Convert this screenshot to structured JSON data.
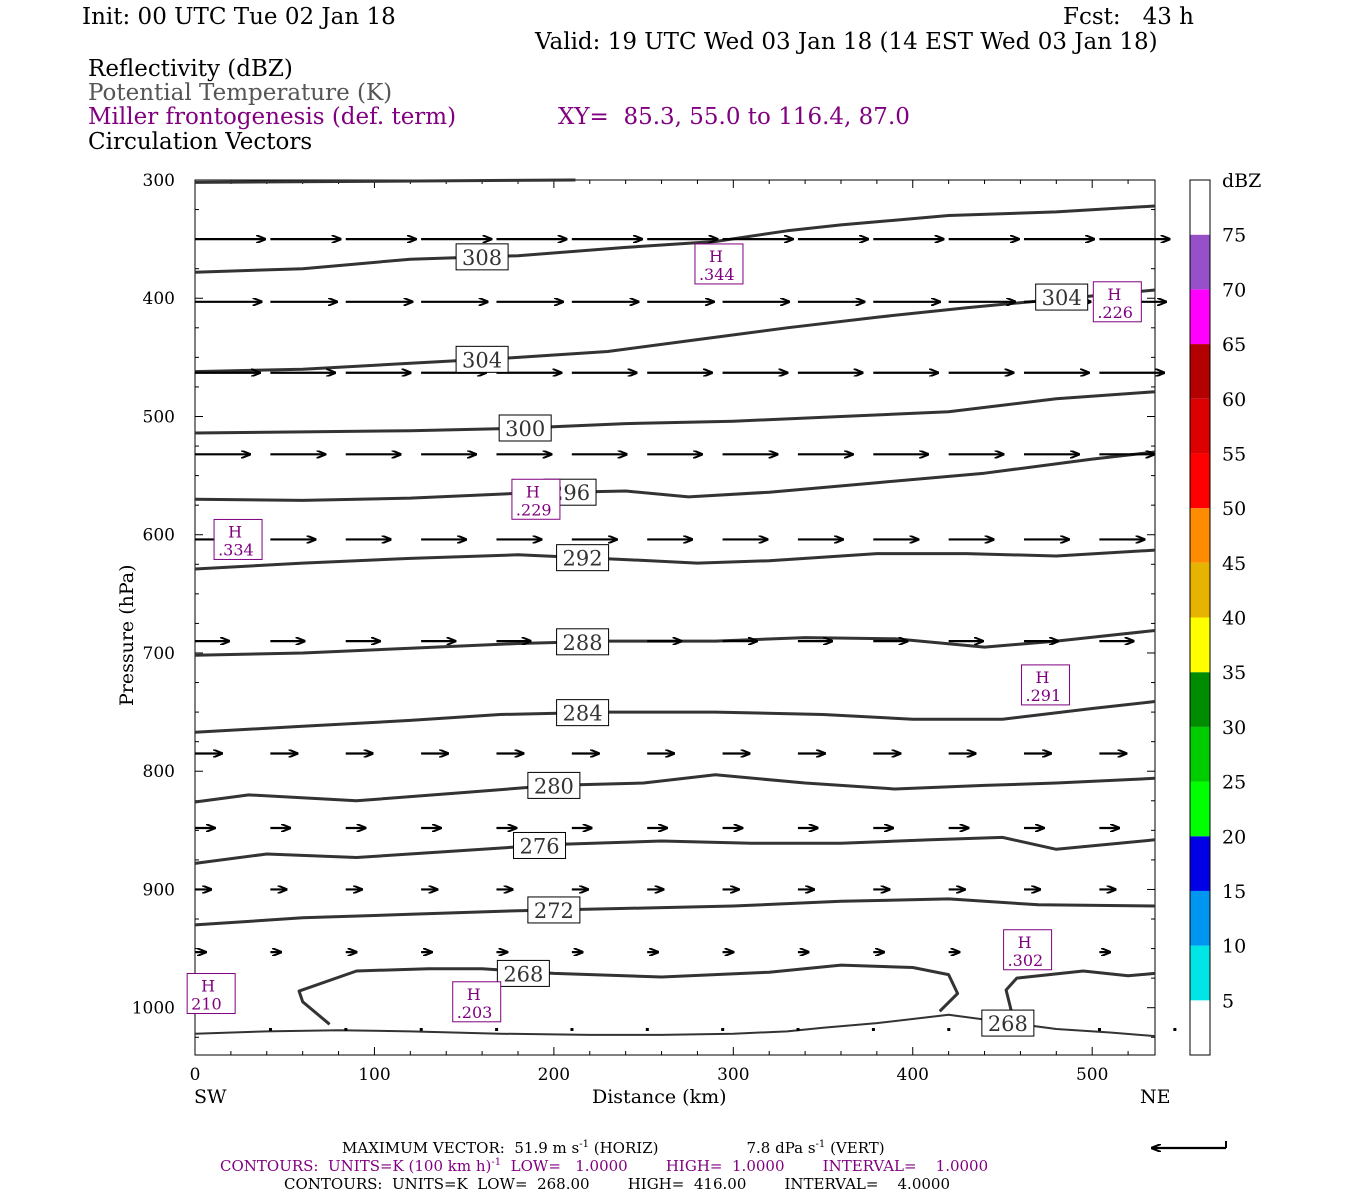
{
  "header": {
    "init": "Init: 00 UTC Tue 02 Jan 18",
    "fcst": "Fcst:   43 h",
    "valid": "Valid: 19 UTC Wed 03 Jan 18 (14 EST Wed 03 Jan 18)"
  },
  "legend_lines": {
    "reflectivity": "Reflectivity (dBZ)",
    "theta": "Potential Temperature (K)",
    "frontogenesis": "Miller frontogenesis (def. term)",
    "xy": "XY=  85.3, 55.0 to 116.4, 87.0",
    "vectors": "Circulation Vectors"
  },
  "colors": {
    "theta_contour": "#333333",
    "frontogenesis": "#800080",
    "vector": "#000000"
  },
  "chart_data": {
    "type": "cross-section",
    "xlabel": "Distance (km)",
    "ylabel": "Pressure (hPa)",
    "xlim": [
      0,
      535
    ],
    "ylim": [
      1040,
      300
    ],
    "y_log_scale": false,
    "x_ticks": [
      "0",
      "100",
      "200",
      "300",
      "400",
      "500"
    ],
    "y_ticks": [
      "300",
      "400",
      "500",
      "600",
      "700",
      "800",
      "900",
      "1000"
    ],
    "x_end_labels": {
      "left": "SW",
      "right": "NE"
    },
    "theta_contours": [
      {
        "level": 308,
        "label": "308",
        "label_x": 160,
        "points": [
          [
            0,
            378
          ],
          [
            60,
            375
          ],
          [
            120,
            367
          ],
          [
            180,
            364
          ],
          [
            240,
            357
          ],
          [
            290,
            352
          ],
          [
            330,
            343
          ],
          [
            360,
            338
          ],
          [
            420,
            330
          ],
          [
            480,
            327
          ],
          [
            535,
            322
          ]
        ]
      },
      {
        "level": 304,
        "label": "304",
        "label_x": 160,
        "points": [
          [
            0,
            462
          ],
          [
            60,
            460
          ],
          [
            120,
            455
          ],
          [
            180,
            450
          ],
          [
            230,
            445
          ],
          [
            280,
            435
          ],
          [
            330,
            425
          ],
          [
            380,
            416
          ],
          [
            430,
            408
          ],
          [
            480,
            401
          ],
          [
            535,
            393
          ]
        ]
      },
      {
        "level": 304,
        "label": "304",
        "label_x": 483,
        "points": []
      },
      {
        "level": 300,
        "label": "300",
        "label_x": 184,
        "points": [
          [
            0,
            514
          ],
          [
            60,
            513
          ],
          [
            120,
            512
          ],
          [
            180,
            510
          ],
          [
            240,
            506
          ],
          [
            300,
            504
          ],
          [
            360,
            500
          ],
          [
            420,
            496
          ],
          [
            480,
            485
          ],
          [
            535,
            479
          ]
        ]
      },
      {
        "level": 296,
        "label": "296",
        "label_x": 209,
        "points": [
          [
            0,
            570
          ],
          [
            60,
            571
          ],
          [
            120,
            569
          ],
          [
            180,
            565
          ],
          [
            240,
            563
          ],
          [
            275,
            568
          ],
          [
            320,
            564
          ],
          [
            380,
            556
          ],
          [
            440,
            548
          ],
          [
            500,
            536
          ],
          [
            535,
            530
          ]
        ]
      },
      {
        "level": 292,
        "label": "292",
        "label_x": 216,
        "points": [
          [
            0,
            629
          ],
          [
            60,
            624
          ],
          [
            120,
            620
          ],
          [
            180,
            617
          ],
          [
            240,
            621
          ],
          [
            280,
            624
          ],
          [
            320,
            622
          ],
          [
            380,
            616
          ],
          [
            430,
            616
          ],
          [
            480,
            618
          ],
          [
            535,
            613
          ]
        ]
      },
      {
        "level": 288,
        "label": "288",
        "label_x": 216,
        "points": [
          [
            0,
            702
          ],
          [
            60,
            700
          ],
          [
            120,
            696
          ],
          [
            180,
            692
          ],
          [
            230,
            690
          ],
          [
            290,
            690
          ],
          [
            340,
            687
          ],
          [
            390,
            688
          ],
          [
            440,
            695
          ],
          [
            480,
            690
          ],
          [
            535,
            681
          ]
        ]
      },
      {
        "level": 284,
        "label": "284",
        "label_x": 216,
        "points": [
          [
            0,
            767
          ],
          [
            60,
            762
          ],
          [
            120,
            757
          ],
          [
            170,
            752
          ],
          [
            230,
            750
          ],
          [
            290,
            750
          ],
          [
            350,
            752
          ],
          [
            400,
            756
          ],
          [
            450,
            756
          ],
          [
            500,
            747
          ],
          [
            535,
            741
          ]
        ]
      },
      {
        "level": 280,
        "label": "280",
        "label_x": 200,
        "points": [
          [
            0,
            826
          ],
          [
            30,
            820
          ],
          [
            90,
            825
          ],
          [
            150,
            818
          ],
          [
            200,
            812
          ],
          [
            250,
            810
          ],
          [
            290,
            803
          ],
          [
            340,
            810
          ],
          [
            390,
            815
          ],
          [
            440,
            812
          ],
          [
            480,
            810
          ],
          [
            535,
            806
          ]
        ]
      },
      {
        "level": 276,
        "label": "276",
        "label_x": 192,
        "points": [
          [
            0,
            878
          ],
          [
            40,
            870
          ],
          [
            90,
            873
          ],
          [
            140,
            868
          ],
          [
            200,
            862
          ],
          [
            260,
            859
          ],
          [
            310,
            861
          ],
          [
            360,
            861
          ],
          [
            410,
            858
          ],
          [
            450,
            856
          ],
          [
            480,
            866
          ],
          [
            535,
            858
          ]
        ]
      },
      {
        "level": 272,
        "label": "272",
        "label_x": 200,
        "points": [
          [
            0,
            930
          ],
          [
            60,
            924
          ],
          [
            120,
            921
          ],
          [
            180,
            918
          ],
          [
            240,
            916
          ],
          [
            300,
            914
          ],
          [
            360,
            910
          ],
          [
            420,
            908
          ],
          [
            470,
            913
          ],
          [
            535,
            914
          ]
        ]
      },
      {
        "level": 268,
        "label": "268",
        "label_x": 183,
        "points": [
          [
            75,
            1014
          ],
          [
            60,
            995
          ],
          [
            58,
            986
          ],
          [
            90,
            969
          ],
          [
            130,
            967
          ],
          [
            160,
            967
          ],
          [
            200,
            971
          ],
          [
            260,
            974
          ],
          [
            320,
            970
          ],
          [
            360,
            964
          ],
          [
            400,
            966
          ],
          [
            420,
            972
          ],
          [
            425,
            988
          ],
          [
            415,
            1003
          ]
        ]
      },
      {
        "level": 268,
        "label": "",
        "label_x": null,
        "points": [
          [
            455,
            1003
          ],
          [
            452,
            985
          ],
          [
            458,
            975
          ],
          [
            495,
            969
          ],
          [
            520,
            973
          ],
          [
            535,
            971
          ]
        ]
      },
      {
        "level": 268,
        "label": "268",
        "label_x": 453,
        "points": [
          [
            0,
            1022
          ],
          [
            40,
            1020
          ],
          [
            80,
            1019
          ],
          [
            120,
            1020
          ],
          [
            170,
            1022
          ],
          [
            220,
            1023
          ],
          [
            260,
            1023
          ],
          [
            300,
            1022
          ],
          [
            330,
            1020
          ],
          [
            350,
            1017
          ],
          [
            380,
            1013
          ],
          [
            420,
            1006
          ],
          [
            450,
            1012
          ],
          [
            480,
            1018
          ],
          [
            510,
            1021
          ],
          [
            535,
            1024
          ]
        ]
      }
    ],
    "frontogenesis_maxima": [
      {
        "label": "H",
        "value": ".344",
        "x": 292,
        "y": 371
      },
      {
        "label": "H",
        "value": ".226",
        "x": 514,
        "y": 403
      },
      {
        "label": "H",
        "value": ".229",
        "x": 190,
        "y": 570
      },
      {
        "label": "H",
        "value": ".334",
        "x": 24,
        "y": 604
      },
      {
        "label": "H",
        "value": ".291",
        "x": 474,
        "y": 727
      },
      {
        "label": "H",
        "value": ".302",
        "x": 464,
        "y": 951
      },
      {
        "label": "H",
        "value": "210",
        "x": 9,
        "y": 988
      },
      {
        "label": "H",
        "value": ".203",
        "x": 157,
        "y": 995
      }
    ],
    "vectors": {
      "rows": [
        {
          "p": 350,
          "u": 0.78,
          "w": 0
        },
        {
          "p": 403,
          "u": 0.74,
          "w": 0
        },
        {
          "p": 463,
          "u": 0.72,
          "w": 0
        },
        {
          "p": 532,
          "u": 0.61,
          "w": 0
        },
        {
          "p": 604,
          "u": 0.5,
          "w": 0
        },
        {
          "p": 690,
          "u": 0.38,
          "w": 0
        },
        {
          "p": 785,
          "u": 0.3,
          "w": 0
        },
        {
          "p": 848,
          "u": 0.22,
          "w": 0
        },
        {
          "p": 900,
          "u": 0.18,
          "w": 0
        },
        {
          "p": 953,
          "u": 0.12,
          "w": 0
        },
        {
          "p": 1018,
          "u": 0.02,
          "w": 0
        }
      ],
      "x_positions": [
        0,
        42,
        84,
        126,
        168,
        210,
        252,
        294,
        336,
        378,
        420,
        462,
        504
      ]
    },
    "colorbar": {
      "unit": "dBZ",
      "levels": [
        "5",
        "10",
        "15",
        "20",
        "25",
        "30",
        "35",
        "40",
        "45",
        "50",
        "55",
        "60",
        "65",
        "70",
        "75"
      ],
      "colors": [
        "#ffffff",
        "#00e6e6",
        "#0096f0",
        "#0000e6",
        "#00ff00",
        "#00cd00",
        "#008c00",
        "#ffff00",
        "#e6b400",
        "#ff8c00",
        "#ff0000",
        "#dc0000",
        "#b40000",
        "#ff00ff",
        "#9650c8",
        "#ffffff"
      ]
    }
  },
  "footer": {
    "max_vector_prefix": "MAXIMUM VECTOR:  51.9 m s",
    "max_vector_exp": "-1",
    "max_vector_mid": " (HORIZ)",
    "max_vector_vert": "7.8 dPa s",
    "max_vector_vert_exp": "-1",
    "max_vector_vert_suffix": " (VERT)",
    "contours_fronto_a": "CONTOURS:  UNITS=K (100 km h)",
    "contours_fronto_exp": "-1",
    "contours_fronto_b": "  LOW=   1.0000        HIGH=  1.0000        INTERVAL=    1.0000",
    "contours_theta": "CONTOURS:  UNITS=K  LOW=  268.00        HIGH=  416.00        INTERVAL=    4.0000"
  }
}
